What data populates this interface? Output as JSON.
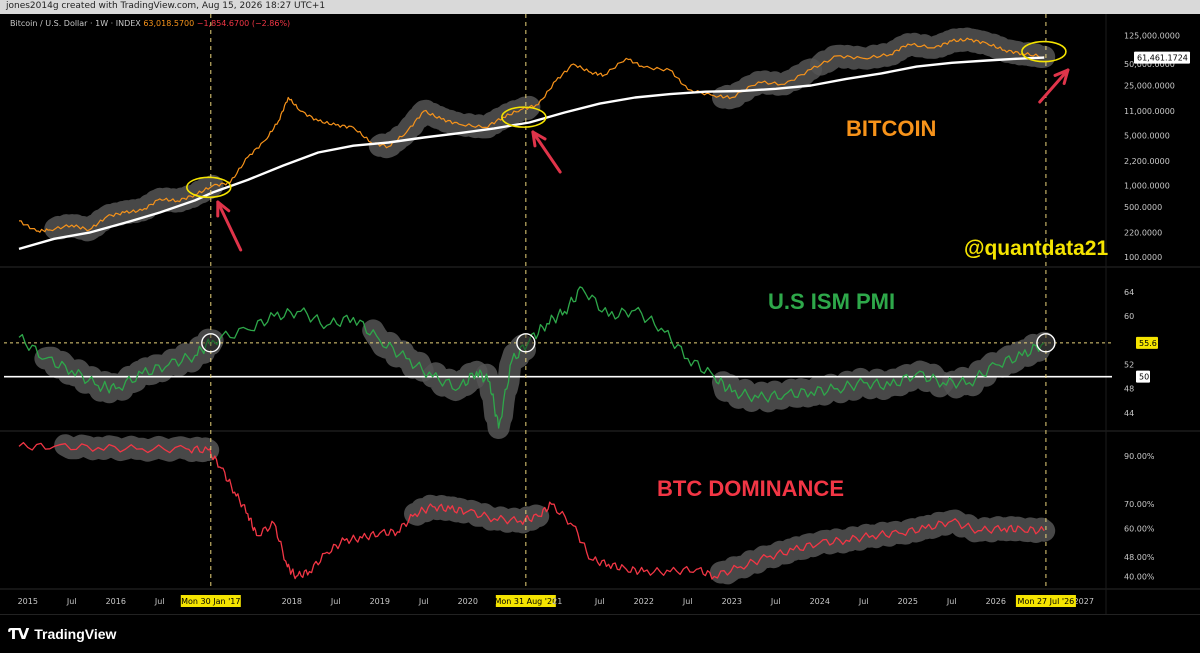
{
  "header": {
    "created_by": "jones2014g created with TradingView.com, Aug 15, 2026 18:27 UTC+1"
  },
  "legend": {
    "symbol": "Bitcoin / U.S. Dollar · 1W · INDEX",
    "price": "63,018.5700",
    "change": "−1,854.6700 (−2.86%)"
  },
  "annotations": {
    "bitcoin": "BITCOIN",
    "handle": "@quantdata21",
    "pmi": "U.S ISM PMI",
    "dominance": "BTC DOMINANCE"
  },
  "colors": {
    "btc": "#f7931a",
    "ma": "#ffffff",
    "pmi": "#2ea84a",
    "dominance": "#f23645",
    "highlight": "#555555",
    "marker_line": "#e8d27a",
    "badge_bg": "#f5e400",
    "arrow": "#e0344a"
  },
  "footer": {
    "brand": "TradingView"
  },
  "chart_data": [
    {
      "type": "line",
      "title": "Bitcoin / U.S. Dollar · 1W · INDEX",
      "yscale": "log",
      "y_ticks": [
        "125,000.0000",
        "50,000.0000",
        "25,000.0000",
        "11,000.0000",
        "5,000.0000",
        "2,200.0000",
        "1,000.0000",
        "500.0000",
        "220.0000",
        "100.0000"
      ],
      "y_tick_values": [
        125000,
        50000,
        25000,
        11000,
        5000,
        2200,
        1000,
        500,
        220,
        100
      ],
      "last_price_label": "61,461.1724",
      "ylim": [
        80,
        170000
      ],
      "series": [
        {
          "key": "btc",
          "color": "#f7931a",
          "x": [
            2014.9,
            2015.1,
            2015.25,
            2015.5,
            2015.7,
            2015.9,
            2016.1,
            2016.3,
            2016.5,
            2016.7,
            2016.9,
            2017.1,
            2017.3,
            2017.5,
            2017.7,
            2017.85,
            2017.96,
            2018.1,
            2018.3,
            2018.5,
            2018.7,
            2018.9,
            2019.1,
            2019.3,
            2019.5,
            2019.7,
            2019.9,
            2020.2,
            2020.4,
            2020.6,
            2020.8,
            2021.0,
            2021.2,
            2021.4,
            2021.55,
            2021.8,
            2022.0,
            2022.3,
            2022.5,
            2022.8,
            2023.0,
            2023.3,
            2023.6,
            2023.9,
            2024.2,
            2024.5,
            2024.8,
            2025.0,
            2025.3,
            2025.5,
            2025.7,
            2025.9,
            2026.1,
            2026.3,
            2026.55
          ],
          "y": [
            320,
            230,
            240,
            280,
            240,
            370,
            420,
            450,
            650,
            610,
            740,
            990,
            1100,
            2500,
            4300,
            8000,
            17000,
            11000,
            8000,
            7000,
            6500,
            4000,
            3500,
            5500,
            11000,
            8500,
            7200,
            6500,
            9000,
            11500,
            13500,
            29000,
            50000,
            38000,
            35000,
            60000,
            45000,
            41000,
            22000,
            18000,
            17000,
            28000,
            26000,
            42000,
            65000,
            60000,
            68000,
            95000,
            84000,
            105000,
            110000,
            97000,
            78000,
            70000,
            63018
          ]
        },
        {
          "key": "ma",
          "color": "#ffffff",
          "x": [
            2014.9,
            2015.3,
            2015.7,
            2016.1,
            2016.5,
            2016.9,
            2017.1,
            2017.5,
            2017.9,
            2018.3,
            2018.7,
            2019.1,
            2019.5,
            2019.9,
            2020.3,
            2020.7,
            2021.1,
            2021.5,
            2021.9,
            2022.3,
            2022.7,
            2023.1,
            2023.5,
            2023.9,
            2024.3,
            2024.7,
            2025.1,
            2025.5,
            2025.9,
            2026.2,
            2026.55
          ],
          "y": [
            130,
            180,
            220,
            300,
            420,
            620,
            800,
            1200,
            1900,
            2900,
            3600,
            4000,
            4700,
            5400,
            6300,
            7600,
            10500,
            14000,
            17000,
            19000,
            20500,
            21000,
            22500,
            25000,
            31000,
            37000,
            46000,
            52000,
            56000,
            59000,
            61461
          ]
        }
      ]
    },
    {
      "type": "line",
      "title": "U.S ISM PMI",
      "y_ticks": [
        "64",
        "60",
        "55.6",
        "52",
        "50",
        "48",
        "44"
      ],
      "y_tick_values": [
        64,
        60,
        55.6,
        52,
        50,
        48,
        44
      ],
      "ylim": [
        41.5,
        66
      ],
      "series": [
        {
          "key": "pmi",
          "color": "#2ea84a",
          "x": [
            2014.9,
            2015.2,
            2015.5,
            2015.8,
            2016.0,
            2016.3,
            2016.6,
            2016.9,
            2017.1,
            2017.5,
            2017.8,
            2018.1,
            2018.4,
            2018.7,
            2019.0,
            2019.3,
            2019.6,
            2019.9,
            2020.1,
            2020.25,
            2020.35,
            2020.5,
            2020.7,
            2020.9,
            2021.1,
            2021.3,
            2021.6,
            2021.9,
            2022.2,
            2022.5,
            2022.8,
            2023.0,
            2023.3,
            2023.6,
            2023.9,
            2024.2,
            2024.5,
            2024.8,
            2025.1,
            2025.4,
            2025.7,
            2026.0,
            2026.3,
            2026.55
          ],
          "y": [
            56.5,
            53,
            51,
            48.5,
            48,
            50.5,
            52,
            53.5,
            56,
            57.8,
            60,
            60.8,
            58.5,
            59.8,
            56,
            53,
            50,
            48.1,
            50.8,
            49.1,
            41.5,
            52.6,
            56,
            58.8,
            60.8,
            64.7,
            60,
            61,
            58,
            53,
            50,
            47.5,
            46.5,
            47,
            47.5,
            48,
            49,
            48.5,
            50.5,
            49,
            49,
            52,
            53.5,
            55.6
          ]
        }
      ],
      "reference_line": 50
    },
    {
      "type": "line",
      "title": "BTC DOMINANCE",
      "y_ticks": [
        "90.00%",
        "70.00%",
        "60.00%",
        "48.00%",
        "40.00%"
      ],
      "y_tick_values": [
        90,
        70,
        60,
        48,
        40
      ],
      "ylim": [
        36,
        100
      ],
      "series": [
        {
          "key": "dominance",
          "color": "#f23645",
          "x": [
            2014.9,
            2015.3,
            2015.8,
            2016.3,
            2016.8,
            2017.05,
            2017.2,
            2017.35,
            2017.5,
            2017.6,
            2017.8,
            2017.95,
            2018.05,
            2018.2,
            2018.4,
            2018.6,
            2018.8,
            2019.0,
            2019.2,
            2019.4,
            2019.6,
            2019.8,
            2020.0,
            2020.3,
            2020.6,
            2020.8,
            2020.95,
            2021.2,
            2021.4,
            2021.6,
            2021.8,
            2022.0,
            2022.3,
            2022.6,
            2022.8,
            2023.1,
            2023.4,
            2023.7,
            2024.0,
            2024.3,
            2024.6,
            2024.9,
            2025.2,
            2025.5,
            2025.8,
            2026.1,
            2026.3,
            2026.55
          ],
          "y": [
            94,
            94,
            93.5,
            93,
            93,
            92.5,
            85,
            75,
            66,
            57,
            62,
            44,
            40,
            42,
            50,
            55,
            56,
            58,
            58.5,
            66,
            69,
            68,
            67,
            64,
            63,
            65,
            70,
            61,
            47,
            45,
            43,
            42,
            42,
            43,
            40,
            44,
            48,
            51,
            54,
            55,
            57,
            58,
            60,
            63,
            59,
            60,
            59.5,
            59
          ]
        }
      ]
    }
  ],
  "xaxis": {
    "labels": [
      {
        "t": 2015.0,
        "text": "2015"
      },
      {
        "t": 2015.5,
        "text": "Jul"
      },
      {
        "t": 2016.0,
        "text": "2016"
      },
      {
        "t": 2016.5,
        "text": "Jul"
      },
      {
        "t": 2018.0,
        "text": "2018"
      },
      {
        "t": 2018.5,
        "text": "Jul"
      },
      {
        "t": 2019.0,
        "text": "2019"
      },
      {
        "t": 2019.5,
        "text": "Jul"
      },
      {
        "t": 2020.0,
        "text": "2020"
      },
      {
        "t": 2021.5,
        "text": "Jul"
      },
      {
        "t": 2022.0,
        "text": "2022"
      },
      {
        "t": 2022.5,
        "text": "Jul"
      },
      {
        "t": 2023.0,
        "text": "2023"
      },
      {
        "t": 2023.5,
        "text": "Jul"
      },
      {
        "t": 2024.0,
        "text": "2024"
      },
      {
        "t": 2024.5,
        "text": "Jul"
      },
      {
        "t": 2025.0,
        "text": "2025"
      },
      {
        "t": 2025.5,
        "text": "Jul"
      },
      {
        "t": 2026.0,
        "text": "2026"
      },
      {
        "t": 2027.0,
        "text": "2027"
      }
    ],
    "markers": [
      {
        "t": 2017.08,
        "text": "Mon 30 Jan '17"
      },
      {
        "t": 2020.66,
        "text": "Mon 31 Aug '20"
      },
      {
        "t": 2026.57,
        "text": "Mon 27 Jul '26"
      }
    ],
    "marker_tail": {
      "t": 2020.96,
      "text": "21"
    }
  }
}
